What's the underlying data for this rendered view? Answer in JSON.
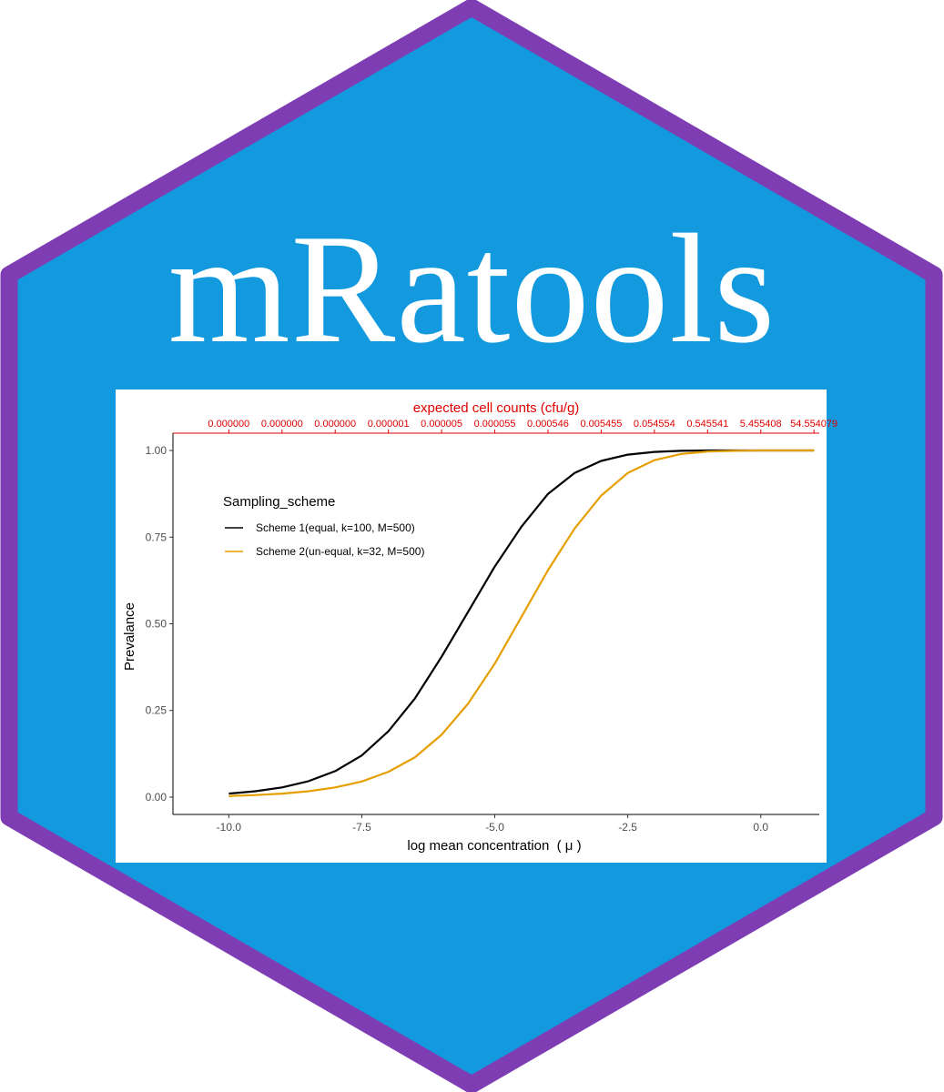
{
  "logo": {
    "title": "mRatools",
    "hex_fill": "#1399de",
    "hex_border": "#7e3db3",
    "title_color": "#ffffff"
  },
  "chart_data": {
    "type": "line",
    "title": "",
    "xlabel": "log mean concentration  ( μ )",
    "ylabel": "Prevalance",
    "xlim": [
      -11.05,
      1.1
    ],
    "ylim": [
      -0.05,
      1.05
    ],
    "x_ticks": [
      {
        "value": -10.0,
        "label": "-10.0"
      },
      {
        "value": -7.5,
        "label": "-7.5"
      },
      {
        "value": -5.0,
        "label": "-5.0"
      },
      {
        "value": -2.5,
        "label": "-2.5"
      },
      {
        "value": 0.0,
        "label": "0.0"
      }
    ],
    "y_ticks": [
      {
        "value": 0.0,
        "label": "0.00"
      },
      {
        "value": 0.25,
        "label": "0.25"
      },
      {
        "value": 0.5,
        "label": "0.50"
      },
      {
        "value": 0.75,
        "label": "0.75"
      },
      {
        "value": 1.0,
        "label": "1.00"
      }
    ],
    "secondary_x_axis": {
      "label": "expected cell counts (cfu/g)",
      "color": "#e00000",
      "ticks": [
        {
          "value": -10.0,
          "label": "0.000000"
        },
        {
          "value": -9.0,
          "label": "0.000000"
        },
        {
          "value": -8.0,
          "label": "0.000000"
        },
        {
          "value": -7.0,
          "label": "0.000001"
        },
        {
          "value": -6.0,
          "label": "0.000005"
        },
        {
          "value": -5.0,
          "label": "0.000055"
        },
        {
          "value": -4.0,
          "label": "0.000546"
        },
        {
          "value": -3.0,
          "label": "0.005455"
        },
        {
          "value": -2.0,
          "label": "0.054554"
        },
        {
          "value": -1.0,
          "label": "0.545541"
        },
        {
          "value": 0.0,
          "label": "5.455408"
        },
        {
          "value": 1.0,
          "label": "54.554079"
        }
      ]
    },
    "grid": false,
    "legend": {
      "title": "Sampling_scheme",
      "position": "top-left"
    },
    "series": [
      {
        "name": "Scheme 1(equal, k=100, M=500)",
        "color": "#000000",
        "x": [
          -10.0,
          -9.5,
          -9.0,
          -8.5,
          -8.0,
          -7.5,
          -7.0,
          -6.5,
          -6.0,
          -5.5,
          -5.0,
          -4.5,
          -4.0,
          -3.5,
          -3.0,
          -2.5,
          -2.0,
          -1.5,
          -1.0,
          0.0,
          1.0
        ],
        "y": [
          0.01,
          0.017,
          0.028,
          0.046,
          0.075,
          0.12,
          0.19,
          0.285,
          0.405,
          0.535,
          0.665,
          0.78,
          0.875,
          0.935,
          0.97,
          0.988,
          0.996,
          0.999,
          1.0,
          1.0,
          1.0
        ]
      },
      {
        "name": "Scheme 2(un-equal, k=32, M=500)",
        "color": "#e69f00",
        "x": [
          -10.0,
          -9.5,
          -9.0,
          -8.5,
          -8.0,
          -7.5,
          -7.0,
          -6.5,
          -6.0,
          -5.5,
          -5.0,
          -4.5,
          -4.0,
          -3.5,
          -3.0,
          -2.5,
          -2.0,
          -1.5,
          -1.0,
          -0.5,
          0.0,
          1.0
        ],
        "y": [
          0.003,
          0.006,
          0.01,
          0.017,
          0.028,
          0.045,
          0.073,
          0.115,
          0.18,
          0.27,
          0.385,
          0.52,
          0.655,
          0.775,
          0.87,
          0.935,
          0.972,
          0.99,
          0.997,
          0.999,
          1.0,
          1.0
        ]
      }
    ]
  }
}
